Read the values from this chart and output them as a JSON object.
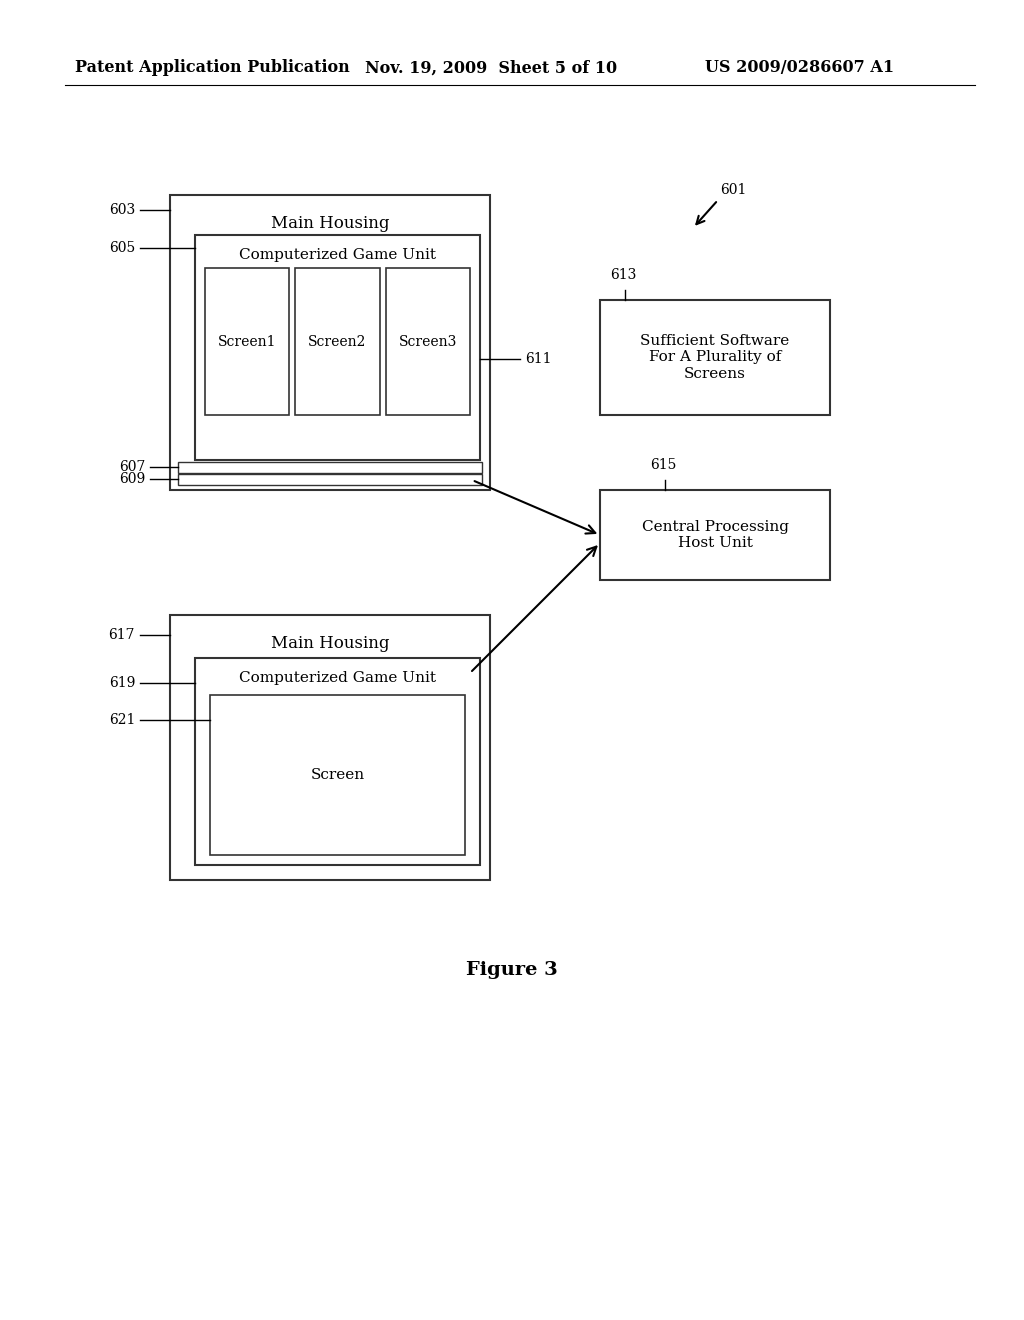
{
  "bg_color": "#ffffff",
  "header_left": "Patent Application Publication",
  "header_mid": "Nov. 19, 2009  Sheet 5 of 10",
  "header_right": "US 2009/0286607 A1",
  "figure_label": "Figure 3",
  "page_width": 10.24,
  "page_height": 13.2
}
